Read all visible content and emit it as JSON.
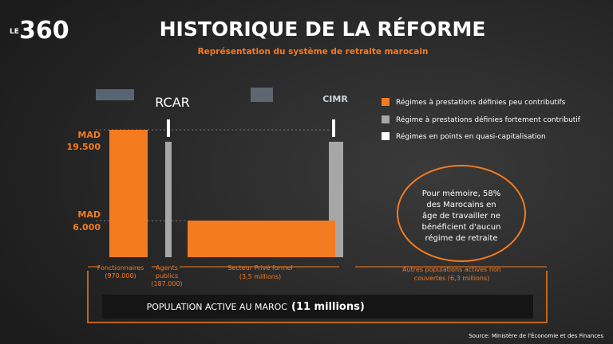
{
  "logo": {
    "prefix": "LE",
    "number": "360"
  },
  "header": {
    "title": "HISTORIQUE DE LA RÉFORME",
    "subtitle": "Représentation du système de retraite marocain"
  },
  "logos": {
    "rcar": "RCAR",
    "cimr": "CIMR"
  },
  "legend": [
    "Régimes à prestations définies peu contributifs",
    "Régime à prestations définies fortement contributif",
    "Régimes en points en quasi-capitalisation"
  ],
  "levels": [
    {
      "unit": "MAD",
      "amount": "19.500"
    },
    {
      "unit": "MAD",
      "amount": "6.000"
    }
  ],
  "groups": [
    {
      "lines": [
        "Fonctionnaires",
        "(970.000)"
      ]
    },
    {
      "lines": [
        "Agents",
        "publics",
        "(187.000)"
      ]
    },
    {
      "lines": [
        "Secteur Privé formel",
        "(3,5 millions)"
      ]
    },
    {
      "lines": [
        "Autres populations actives non",
        "couvertes (6,3 millions)"
      ]
    }
  ],
  "note": [
    "Pour mémoire, 58%",
    "des Marocains en",
    "âge de travailler ne",
    "bénéficient d'aucun",
    "régime de retraite"
  ],
  "total": {
    "label": "POPULATION ACTIVE AU MAROC",
    "value": "(11 millions)"
  },
  "source": "Source: Ministère de l'Économie et des Finances"
}
